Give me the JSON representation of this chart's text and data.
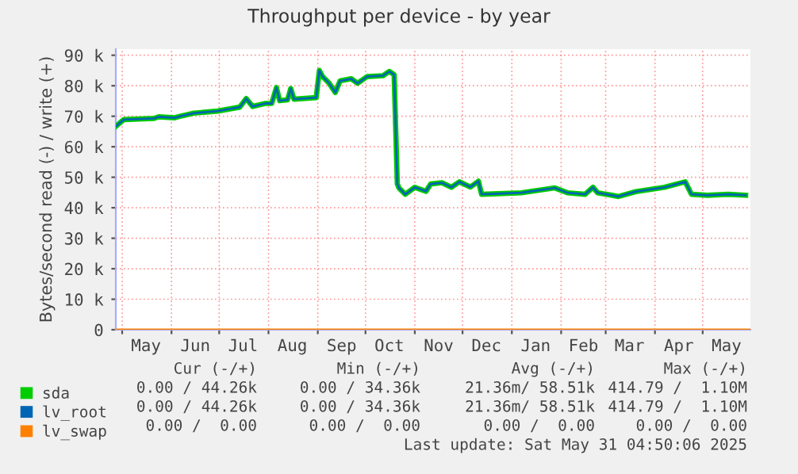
{
  "chart_data": {
    "type": "line",
    "title": "Throughput per device - by year",
    "ylabel": "Bytes/second read (-) / write (+)",
    "x": [
      "2024-04-27",
      "2024-05-02",
      "2024-05-21",
      "2024-05-24",
      "2024-06-03",
      "2024-06-08",
      "2024-06-15",
      "2024-06-30",
      "2024-07-14",
      "2024-07-18",
      "2024-07-22",
      "2024-07-30",
      "2024-08-03",
      "2024-08-06",
      "2024-08-08",
      "2024-08-13",
      "2024-08-15",
      "2024-08-17",
      "2024-08-31",
      "2024-09-02",
      "2024-09-04",
      "2024-09-08",
      "2024-09-12",
      "2024-09-15",
      "2024-09-22",
      "2024-09-26",
      "2024-10-02",
      "2024-10-12",
      "2024-10-16",
      "2024-10-19",
      "2024-10-21",
      "2024-10-22",
      "2024-10-26",
      "2024-11-01",
      "2024-11-08",
      "2024-11-11",
      "2024-11-18",
      "2024-11-24",
      "2024-11-29",
      "2024-12-06",
      "2024-12-11",
      "2024-12-13",
      "2025-01-07",
      "2025-01-28",
      "2025-02-05",
      "2025-02-16",
      "2025-02-21",
      "2025-02-24",
      "2025-03-09",
      "2025-03-20",
      "2025-04-07",
      "2025-04-20",
      "2025-04-24",
      "2025-05-04",
      "2025-05-17",
      "2025-05-28"
    ],
    "series": [
      {
        "name": "sda",
        "color": "#00cc00",
        "values": [
          66700,
          68900,
          69300,
          69800,
          69500,
          70200,
          71000,
          71700,
          73000,
          75800,
          73200,
          74200,
          74200,
          79400,
          75100,
          75400,
          79100,
          75600,
          76100,
          85000,
          83000,
          80900,
          77800,
          81600,
          82300,
          80800,
          83000,
          83300,
          84700,
          83600,
          47800,
          46500,
          44400,
          46700,
          45400,
          47800,
          48200,
          46700,
          48500,
          46800,
          48700,
          44400,
          44900,
          46500,
          44900,
          44400,
          46700,
          44900,
          43700,
          45300,
          46700,
          48500,
          44400,
          44100,
          44400,
          44100
        ]
      },
      {
        "name": "lv_root",
        "color": "#0066b3",
        "values": [
          66700,
          68900,
          69300,
          69800,
          69500,
          70200,
          71000,
          71700,
          73000,
          75800,
          73200,
          74200,
          74200,
          79400,
          75100,
          75400,
          79100,
          75600,
          76100,
          85000,
          83000,
          80900,
          77800,
          81600,
          82300,
          80800,
          83000,
          83300,
          84700,
          83600,
          47800,
          46500,
          44400,
          46700,
          45400,
          47800,
          48200,
          46700,
          48500,
          46800,
          48700,
          44400,
          44900,
          46500,
          44900,
          44400,
          46700,
          44900,
          43700,
          45300,
          46700,
          48500,
          44400,
          44100,
          44400,
          44100
        ]
      },
      {
        "name": "lv_swap",
        "color": "#ff8000",
        "x": [
          "2024-04-27",
          "2025-05-31"
        ],
        "values": [
          0,
          0
        ]
      }
    ],
    "xlim": [
      "2024-04-27",
      "2025-05-31"
    ],
    "xticks": [
      {
        "value": "2024-05-01",
        "label": null
      },
      {
        "value": "2024-05-16",
        "label": "May"
      },
      {
        "value": "2024-06-01",
        "label": null
      },
      {
        "value": "2024-06-16",
        "label": "Jun"
      },
      {
        "value": "2024-07-01",
        "label": null
      },
      {
        "value": "2024-07-16",
        "label": "Jul"
      },
      {
        "value": "2024-08-01",
        "label": null
      },
      {
        "value": "2024-08-16",
        "label": "Aug"
      },
      {
        "value": "2024-09-01",
        "label": null
      },
      {
        "value": "2024-09-16",
        "label": "Sep"
      },
      {
        "value": "2024-10-01",
        "label": null
      },
      {
        "value": "2024-10-16",
        "label": "Oct"
      },
      {
        "value": "2024-11-01",
        "label": null
      },
      {
        "value": "2024-11-16",
        "label": "Nov"
      },
      {
        "value": "2024-12-01",
        "label": null
      },
      {
        "value": "2024-12-16",
        "label": "Dec"
      },
      {
        "value": "2025-01-01",
        "label": null
      },
      {
        "value": "2025-01-16",
        "label": "Jan"
      },
      {
        "value": "2025-02-01",
        "label": null
      },
      {
        "value": "2025-02-15",
        "label": "Feb"
      },
      {
        "value": "2025-03-01",
        "label": null
      },
      {
        "value": "2025-03-16",
        "label": "Mar"
      },
      {
        "value": "2025-04-01",
        "label": null
      },
      {
        "value": "2025-04-16",
        "label": "Apr"
      },
      {
        "value": "2025-05-01",
        "label": null
      },
      {
        "value": "2025-05-16",
        "label": "May"
      }
    ],
    "ylim": [
      0,
      92000
    ],
    "yticks": [
      0,
      {
        "value": 10000,
        "label": "10 k"
      },
      {
        "value": 20000,
        "label": "20 k"
      },
      {
        "value": 30000,
        "label": "30 k"
      },
      {
        "value": 40000,
        "label": "40 k"
      },
      {
        "value": 50000,
        "label": "50 k"
      },
      {
        "value": 60000,
        "label": "60 k"
      },
      {
        "value": 70000,
        "label": "70 k"
      },
      {
        "value": 80000,
        "label": "80 k"
      },
      {
        "value": 90000,
        "label": "90 k"
      }
    ],
    "grid": true,
    "legend": "bottom",
    "annotations": [
      "Cur (-/+)",
      "Min (-/+)",
      "Avg (-/+)",
      "Max (-/+)",
      "0.00 / 44.26k",
      "0.00 / 34.36k",
      "21.36m/ 58.51k",
      "414.79 /  1.10M",
      "0.00 / 44.26k",
      "0.00 / 34.36k",
      "21.36m/ 58.51k",
      "414.79 /  1.10M",
      "0.00 /  0.00",
      "0.00 /  0.00",
      "0.00 /  0.00",
      "0.00 /  0.00",
      "Last update: Sat May 31 04:50:06 2025"
    ]
  }
}
